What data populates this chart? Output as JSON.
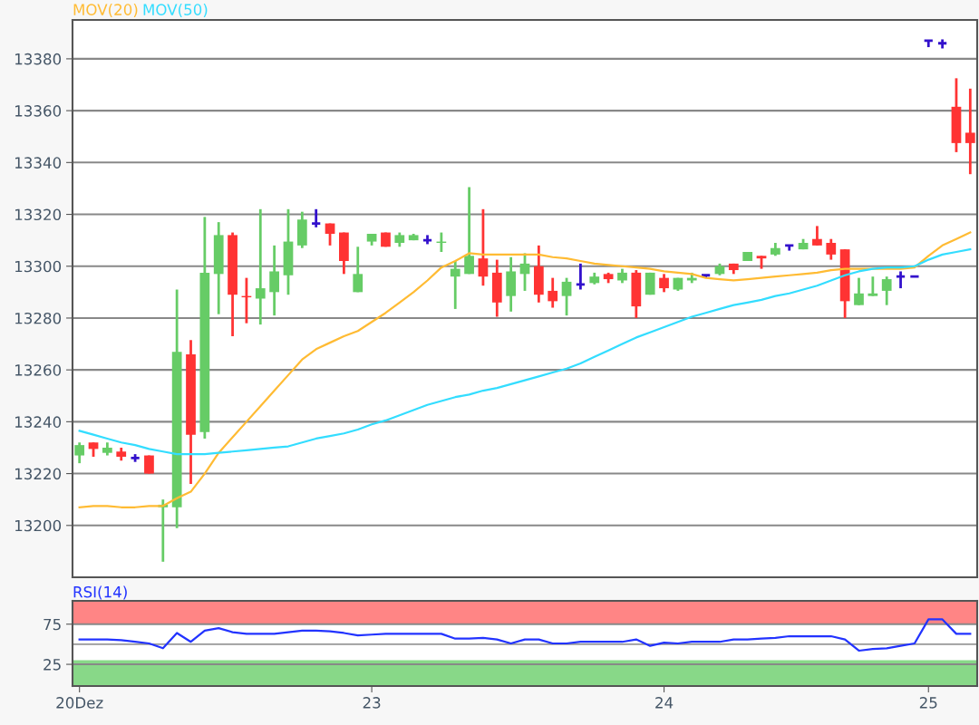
{
  "chart_data": [
    {
      "type": "candlestick",
      "categories": [
        null,
        null,
        null,
        null,
        null,
        null,
        null,
        null,
        null,
        null,
        null,
        null,
        null,
        null,
        null,
        null,
        null,
        null,
        null,
        null,
        null,
        null,
        null,
        null,
        null,
        null,
        null,
        null,
        null,
        null,
        null,
        null,
        null,
        null,
        null,
        null,
        null,
        null,
        null,
        null,
        null,
        null,
        null,
        null,
        null,
        null,
        null,
        null,
        null,
        null,
        null,
        null,
        null,
        null,
        null,
        null,
        null,
        null,
        null,
        null,
        null,
        null,
        null,
        null,
        null
      ],
      "ohlc": [
        [
          13227,
          13232,
          13224,
          13231
        ],
        [
          13232,
          13232,
          13226.5,
          13229.5
        ],
        [
          13228,
          13232,
          13227,
          13230
        ],
        [
          13228.5,
          13230,
          13225,
          13226.5
        ],
        [
          13226,
          13227.5,
          13224.5,
          13226
        ],
        [
          13227,
          13227,
          13220,
          13220
        ],
        [
          13207,
          13210,
          13186,
          13208
        ],
        [
          13207,
          13291,
          13199,
          13267
        ],
        [
          13266,
          13271.5,
          13216,
          13235
        ],
        [
          13236,
          13319,
          13233.5,
          13297.5
        ],
        [
          13297,
          13317,
          13281.5,
          13312
        ],
        [
          13312,
          13313,
          13273,
          13289
        ],
        [
          13288.5,
          13295.5,
          13278,
          13288
        ],
        [
          13287.5,
          13322,
          13277.5,
          13291.5
        ],
        [
          13290,
          13308,
          13281,
          13298
        ],
        [
          13296.5,
          13322,
          13289,
          13309.5
        ],
        [
          13308,
          13321,
          13307,
          13318
        ],
        [
          13316.5,
          13322,
          13315,
          13316.5
        ],
        [
          13316.5,
          13316.5,
          13308,
          13312.5
        ],
        [
          13313,
          13313,
          13297,
          13302
        ],
        [
          13290,
          13307.5,
          13290,
          13297
        ],
        [
          13309.5,
          13312.5,
          13308,
          13312.5
        ],
        [
          13313,
          13313,
          13307.5,
          13307.5
        ],
        [
          13309,
          13313,
          13307.5,
          13312
        ],
        [
          13310,
          13312.5,
          13310,
          13312
        ],
        [
          13310,
          13312,
          13308.5,
          13310
        ],
        [
          13309,
          13313,
          13305.5,
          13309.5
        ],
        [
          13296,
          13302,
          13283.5,
          13299
        ],
        [
          13297,
          13330.5,
          13297,
          13304
        ],
        [
          13303,
          13322,
          13292.5,
          13296
        ],
        [
          13297.5,
          13302.5,
          13280.5,
          13286
        ],
        [
          13288.5,
          13303.5,
          13282.5,
          13298
        ],
        [
          13297,
          13305,
          13290.5,
          13301
        ],
        [
          13300,
          13308,
          13286,
          13289
        ],
        [
          13290.5,
          13295.5,
          13284,
          13286.5
        ],
        [
          13288.5,
          13295.5,
          13281,
          13294
        ],
        [
          13293,
          13301,
          13291,
          13293
        ],
        [
          13293.5,
          13297.5,
          13293,
          13296
        ],
        [
          13297,
          13297.5,
          13293.5,
          13295
        ],
        [
          13294.5,
          13299,
          13293.5,
          13297.5
        ],
        [
          13297.5,
          13298.5,
          13280,
          13284.5
        ],
        [
          13289,
          13297.5,
          13289,
          13297.5
        ],
        [
          13295.5,
          13297,
          13290,
          13291.5
        ],
        [
          13291,
          13295.5,
          13290.5,
          13295.5
        ],
        [
          13294.5,
          13297.5,
          13293.5,
          13295.5
        ],
        [
          13296.5,
          13296.5,
          13295.5,
          13296.5
        ],
        [
          13297,
          13301,
          13296.5,
          13300
        ],
        [
          13301,
          13301,
          13297,
          13298.5
        ],
        [
          13302,
          13305.5,
          13302,
          13305.5
        ],
        [
          13304,
          13304,
          13299,
          13303
        ],
        [
          13304.5,
          13309,
          13304,
          13307
        ],
        [
          13308,
          13308,
          13306,
          13308
        ],
        [
          13306.5,
          13310.5,
          13306.5,
          13309
        ],
        [
          13310.5,
          13315.5,
          13308,
          13308
        ],
        [
          13309,
          13310.5,
          13302.5,
          13304.5
        ],
        [
          13306.5,
          13306.5,
          13280,
          13286.5
        ],
        [
          13285,
          13295.5,
          13285,
          13289.5
        ],
        [
          13288.5,
          13296,
          13288.5,
          13289.5
        ],
        [
          13290.5,
          13296,
          13285,
          13295
        ],
        [
          13296,
          13298,
          13291.5,
          13296
        ],
        [
          13296,
          13296,
          13296,
          13296
        ],
        [
          13387,
          13387,
          13384.5,
          13387
        ],
        [
          13386,
          13387.5,
          13384,
          13386
        ],
        [
          13361.5,
          13372.5,
          13344,
          13347.5
        ],
        [
          13351.5,
          13368.5,
          13335.5,
          13347.5
        ]
      ],
      "colors": [
        "#66cc66",
        "#ff3333",
        "#66cc66",
        "#ff3333",
        "#3311cc",
        "#ff3333",
        "#66cc66",
        "#66cc66",
        "#ff3333",
        "#66cc66",
        "#66cc66",
        "#ff3333",
        "#ff3333",
        "#66cc66",
        "#66cc66",
        "#66cc66",
        "#66cc66",
        "#3311cc",
        "#ff3333",
        "#ff3333",
        "#66cc66",
        "#66cc66",
        "#ff3333",
        "#66cc66",
        "#66cc66",
        "#3311cc",
        "#66cc66",
        "#66cc66",
        "#66cc66",
        "#ff3333",
        "#ff3333",
        "#66cc66",
        "#66cc66",
        "#ff3333",
        "#ff3333",
        "#66cc66",
        "#3311cc",
        "#66cc66",
        "#ff3333",
        "#66cc66",
        "#ff3333",
        "#66cc66",
        "#ff3333",
        "#66cc66",
        "#66cc66",
        "#3311cc",
        "#66cc66",
        "#ff3333",
        "#66cc66",
        "#ff3333",
        "#66cc66",
        "#3311cc",
        "#66cc66",
        "#ff3333",
        "#ff3333",
        "#ff3333",
        "#66cc66",
        "#66cc66",
        "#66cc66",
        "#3311cc",
        "#3311cc",
        "#3311cc",
        "#3311cc",
        "#ff3333",
        "#ff3333"
      ],
      "series": [
        {
          "type": "line",
          "name": "MOV(20)",
          "color": "#ffbb33",
          "values": [
            13207,
            13207.5,
            13207.5,
            13207,
            13207,
            13207.5,
            13207.5,
            13210.5,
            13213,
            13220,
            13228,
            13234,
            13240,
            13246,
            13252,
            13258,
            13264,
            13268,
            13270.5,
            13273,
            13275,
            13278.5,
            13282,
            13286,
            13290,
            13294.5,
            13299.5,
            13302,
            13305,
            13304.5,
            13304.5,
            13304.5,
            13304.5,
            13304.5,
            13303.5,
            13303,
            13302,
            13301,
            13300.5,
            13300,
            13299.5,
            13299,
            13298,
            13297.5,
            13297,
            13295.5,
            13295,
            13294.5,
            13295,
            13295.5,
            13296,
            13296.5,
            13297,
            13297.5,
            13298.5,
            13299,
            13299,
            13299,
            13299,
            13299,
            13299.5,
            13304,
            13308,
            13310.5,
            13313
          ]
        },
        {
          "type": "line",
          "name": "MOV(50)",
          "color": "#33ddff",
          "values": [
            13236.5,
            13235,
            13233.5,
            13232,
            13231,
            13229.5,
            13228.5,
            13227.5,
            13227.5,
            13227.5,
            13228,
            13228.5,
            13229,
            13229.5,
            13230,
            13230.5,
            13232,
            13233.5,
            13234.5,
            13235.5,
            13237,
            13239,
            13240.5,
            13242.5,
            13244.5,
            13246.5,
            13248,
            13249.5,
            13250.5,
            13252,
            13253,
            13254.5,
            13256,
            13257.5,
            13259,
            13260.5,
            13262.5,
            13265,
            13267.5,
            13270,
            13272.5,
            13274.5,
            13276.5,
            13278.5,
            13280.5,
            13282,
            13283.5,
            13285,
            13286,
            13287,
            13288.5,
            13289.5,
            13291,
            13292.5,
            13294.5,
            13296.5,
            13298,
            13299,
            13299.5,
            13299.5,
            13300,
            13302.5,
            13304.5,
            13305.5,
            13306.5
          ]
        }
      ],
      "ylim": [
        13180,
        13395
      ],
      "yticks": [
        13200,
        13220,
        13240,
        13260,
        13280,
        13300,
        13320,
        13340,
        13360,
        13380
      ],
      "grid": "y",
      "legend": "top left",
      "tick_labels": "y"
    },
    {
      "type": "line",
      "categories": [
        "20Dez",
        null,
        null,
        null,
        null,
        null,
        null,
        null,
        null,
        null,
        null,
        null,
        null,
        null,
        null,
        null,
        null,
        null,
        null,
        null,
        null,
        "23",
        null,
        null,
        null,
        null,
        null,
        null,
        null,
        null,
        null,
        null,
        null,
        null,
        null,
        null,
        null,
        null,
        null,
        null,
        null,
        null,
        "24",
        null,
        null,
        null,
        null,
        null,
        null,
        null,
        null,
        null,
        null,
        null,
        null,
        null,
        null,
        null,
        null,
        null,
        null,
        "25",
        null,
        null,
        null
      ],
      "series": [
        {
          "name": "RSI(14)",
          "color": "#2233ff",
          "values": [
            56,
            56,
            56,
            55,
            53,
            51,
            45,
            64,
            53,
            67,
            70,
            65,
            63,
            63,
            63,
            65,
            67,
            67,
            66,
            64,
            61,
            62,
            63,
            63,
            63,
            63,
            63,
            57,
            57,
            58,
            56,
            51,
            56,
            56,
            51,
            51,
            53,
            53,
            53,
            53,
            56,
            48,
            52,
            51,
            53,
            53,
            53,
            56,
            56,
            57,
            58,
            60,
            60,
            60,
            60,
            56,
            42,
            44,
            45,
            48,
            51,
            81,
            81,
            63,
            63
          ]
        }
      ],
      "ylim": [
        -2,
        104
      ],
      "yticks": [
        25,
        75
      ],
      "grid": "y",
      "bands": [
        {
          "axis": "y",
          "from": 75,
          "to": 104,
          "color": "#ff8585"
        },
        {
          "axis": "y",
          "from": -2,
          "to": 30,
          "color": "#88d888"
        }
      ],
      "ref_lines": [
        {
          "axis": "y",
          "value": 50,
          "color": "#999999"
        }
      ],
      "legend": "top left"
    }
  ]
}
